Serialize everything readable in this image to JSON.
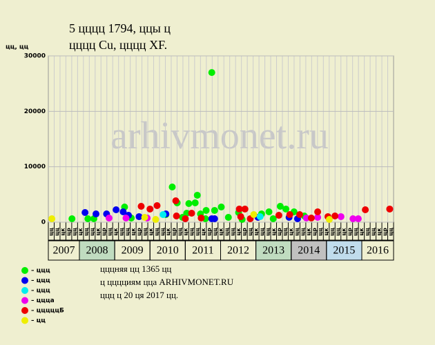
{
  "chart_data": {
    "type": "scatter",
    "title": "5 цццц 1794, ццы ц",
    "subtitle": "цццц Cu, цццц XF.",
    "y_label": "цц, цц",
    "watermark": "arhivmonet.ru",
    "ylim": [
      0,
      30000
    ],
    "yticks": [
      0,
      10000,
      20000,
      30000
    ],
    "xlim": [
      2007.12,
      2016.9
    ],
    "xticks": [
      2008,
      2009,
      2010,
      2011,
      2012,
      2013,
      2014,
      2015,
      2016
    ],
    "years": [
      "2007",
      "2008",
      "2009",
      "2010",
      "2011",
      "2012",
      "2013",
      "2014",
      "2015",
      "2016"
    ],
    "year_colors": [
      "#efefd0",
      "#c0dcc0",
      "#efefd0",
      "#efefd0",
      "#efefd0",
      "#efefd0",
      "#c0dcc0",
      "#c0c0c0",
      "#c0dcec",
      "#efefd0"
    ],
    "period_labels": [
      "цц",
      "цц",
      "цк",
      "цр",
      "цц",
      "цк",
      "цц",
      "цц",
      "цк",
      "цр",
      "цц",
      "цк",
      "цц",
      "цц",
      "цк",
      "цр",
      "цц",
      "цк",
      "цц",
      "цц",
      "цк",
      "цр",
      "цц",
      "цк",
      "цц",
      "цц",
      "цк",
      "цр",
      "цц",
      "цк",
      "цц",
      "цц",
      "цк",
      "цр",
      "цц",
      "цк",
      "цц",
      "цц",
      "цк",
      "цр",
      "цц",
      "цк",
      "цц",
      "цц",
      "цк",
      "цр",
      "цц",
      "цк",
      "цц",
      "цц",
      "цк",
      "цр",
      "цц",
      "цк",
      "цц",
      "цц",
      "цк",
      "цр",
      "цц"
    ],
    "grid": true,
    "series": [
      {
        "name": "– ццц",
        "color": "#00ee00",
        "x": [
          2007.79,
          2008.24,
          2008.41,
          2009.28,
          2009.47,
          2010.63,
          2010.77,
          2011.1,
          2011.34,
          2011.28,
          2011.75,
          2011.59,
          2012.02,
          2011.83,
          2012.22,
          2012.51,
          2013.16,
          2013.37,
          2013.69,
          2013.85,
          2014.08,
          2014.37,
          2011.57,
          2010.92,
          2010.45,
          2012.61,
          2013.49,
          2011.04,
          2011.43
        ],
        "values": [
          620,
          620,
          620,
          2740,
          750,
          6350,
          3490,
          3360,
          4860,
          3490,
          27000,
          2120,
          2740,
          2120,
          870,
          1740,
          1490,
          1870,
          2860,
          2370,
          1870,
          1120,
          620,
          870,
          1370,
          500,
          620,
          1620,
          1490
        ]
      },
      {
        "name": "– ццц",
        "color": "#0000ee",
        "x": [
          2008.16,
          2008.47,
          2008.77,
          2009.04,
          2009.24,
          2009.39,
          2009.69,
          2010.45,
          2011.75,
          2011.83,
          2013.06,
          2013.94,
          2014.18
        ],
        "values": [
          1740,
          1490,
          1490,
          2240,
          1870,
          1240,
          1000,
          1490,
          620,
          620,
          870,
          870,
          620
        ]
      },
      {
        "name": "– ццц",
        "color": "#00eeee",
        "x": [
          2010.37,
          2013.12
        ],
        "values": [
          1370,
          1000
        ]
      },
      {
        "name": "– цццa",
        "color": "#ee00ee",
        "x": [
          2008.84,
          2009.32,
          2009.92,
          2014.43,
          2014.75,
          2015.41,
          2015.75,
          2015.9
        ],
        "values": [
          750,
          750,
          750,
          750,
          870,
          1000,
          620,
          620
        ]
      },
      {
        "name": "– цццццБ",
        "color": "#ee0000",
        "x": [
          2009.75,
          2010.0,
          2010.2,
          2010.73,
          2010.75,
          2011.0,
          2011.18,
          2011.45,
          2012.53,
          2012.69,
          2012.57,
          2012.84,
          2013.65,
          2013.96,
          2014.24,
          2014.57,
          2014.75,
          2015.04,
          2015.24,
          2016.1,
          2016.79
        ],
        "values": [
          2860,
          2370,
          2990,
          3860,
          1120,
          620,
          1620,
          750,
          2370,
          2370,
          1000,
          620,
          1240,
          1370,
          1370,
          750,
          1870,
          1000,
          1120,
          2240,
          2370
        ]
      },
      {
        "name": "– цц",
        "color": "#eeee00",
        "x": [
          2007.22,
          2009.85,
          2010.16,
          2015.08,
          2012.94
        ],
        "values": [
          620,
          870,
          500,
          500,
          1370
        ]
      }
    ],
    "notes": [
      "цццняя цц 1365 цц",
      "ц цццциям цца ARHIVMONET.RU",
      "ццц ц 20 ця 2017 цц."
    ]
  }
}
